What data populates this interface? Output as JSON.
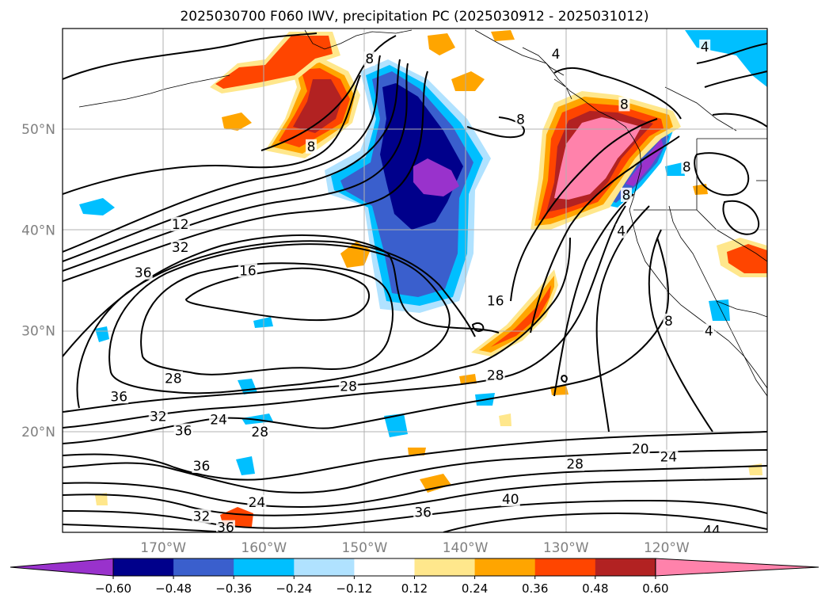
{
  "title": "2025030700 F060 IWV, precipitation PC (2025030912 - 2025031012)",
  "map": {
    "lat_ticks": [
      {
        "lat": 50,
        "label": "50°N"
      },
      {
        "lat": 40,
        "label": "40°N"
      },
      {
        "lat": 30,
        "label": "30°N"
      },
      {
        "lat": 20,
        "label": "20°N"
      }
    ],
    "lon_ticks": [
      {
        "lon": -170,
        "label": "170°W"
      },
      {
        "lon": -160,
        "label": "160°W"
      },
      {
        "lon": -150,
        "label": "150°W"
      },
      {
        "lon": -140,
        "label": "140°W"
      },
      {
        "lon": -130,
        "label": "130°W"
      },
      {
        "lon": -120,
        "label": "120°W"
      }
    ],
    "contour_labels": [
      {
        "text": "8",
        "lon": -155.3,
        "lat": 48.3
      },
      {
        "text": "8",
        "lon": -149.5,
        "lat": 57.0
      },
      {
        "text": "8",
        "lon": -134.5,
        "lat": 51.0
      },
      {
        "text": "8",
        "lon": -124.2,
        "lat": 52.5
      },
      {
        "text": "8",
        "lon": -118.0,
        "lat": 46.3
      },
      {
        "text": "8",
        "lon": -124.0,
        "lat": 43.5
      },
      {
        "text": "8",
        "lon": -119.8,
        "lat": 31.0
      },
      {
        "text": "4",
        "lon": -116.2,
        "lat": 58.2
      },
      {
        "text": "4",
        "lon": -131.0,
        "lat": 57.5
      },
      {
        "text": "4",
        "lon": -124.5,
        "lat": 39.9
      },
      {
        "text": "4",
        "lon": -115.8,
        "lat": 30.0
      },
      {
        "text": "12",
        "lon": -168.3,
        "lat": 40.6
      },
      {
        "text": "32",
        "lon": -168.3,
        "lat": 38.3
      },
      {
        "text": "36",
        "lon": -172.0,
        "lat": 35.8
      },
      {
        "text": "16",
        "lon": -161.6,
        "lat": 36.0
      },
      {
        "text": "16",
        "lon": -137.0,
        "lat": 33.0
      },
      {
        "text": "28",
        "lon": -169.0,
        "lat": 25.3
      },
      {
        "text": "36",
        "lon": -174.4,
        "lat": 23.5
      },
      {
        "text": "32",
        "lon": -170.5,
        "lat": 21.5
      },
      {
        "text": "36",
        "lon": -168.0,
        "lat": 20.1
      },
      {
        "text": "24",
        "lon": -164.5,
        "lat": 21.2
      },
      {
        "text": "28",
        "lon": -160.4,
        "lat": 20.0
      },
      {
        "text": "28",
        "lon": -151.6,
        "lat": 24.5
      },
      {
        "text": "28",
        "lon": -137.0,
        "lat": 25.6
      },
      {
        "text": "36",
        "lon": -166.2,
        "lat": 16.6
      },
      {
        "text": "24",
        "lon": -160.7,
        "lat": 13.0
      },
      {
        "text": "32",
        "lon": -166.2,
        "lat": 11.6
      },
      {
        "text": "36",
        "lon": -163.8,
        "lat": 10.5
      },
      {
        "text": "36",
        "lon": -144.2,
        "lat": 12.0
      },
      {
        "text": "40",
        "lon": -135.5,
        "lat": 13.3
      },
      {
        "text": "28",
        "lon": -129.1,
        "lat": 16.8
      },
      {
        "text": "20",
        "lon": -122.6,
        "lat": 18.3
      },
      {
        "text": "24",
        "lon": -119.8,
        "lat": 17.5
      },
      {
        "text": "44",
        "lon": -115.5,
        "lat": 10.2
      }
    ]
  },
  "colorbar": {
    "tick_labels": [
      "−0.60",
      "−0.48",
      "−0.36",
      "−0.24",
      "−0.12",
      "0.12",
      "0.24",
      "0.36",
      "0.48",
      "0.60"
    ],
    "colors": [
      "#9932cc",
      "#00008b",
      "#3a5fcd",
      "#00bfff",
      "#b0e2ff",
      "#ffffff",
      "#ffe78c",
      "#ffa500",
      "#ff4500",
      "#b22222",
      "#ff82ab"
    ]
  }
}
